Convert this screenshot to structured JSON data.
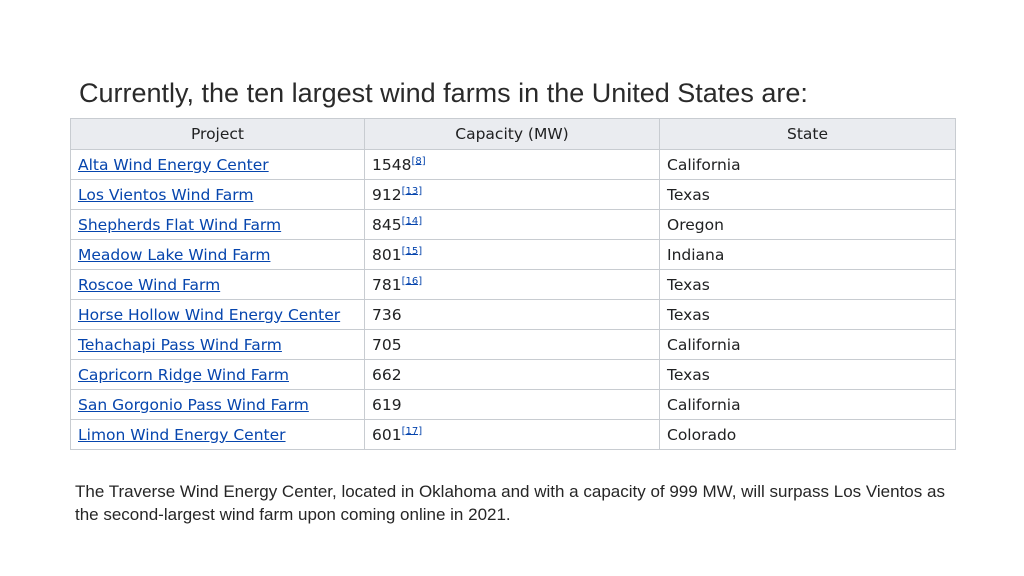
{
  "title": "Currently, the ten largest wind farms in the United States are:",
  "table": {
    "headers": [
      "Project",
      "Capacity (MW)",
      "State"
    ],
    "rows": [
      {
        "project": "Alta Wind Energy Center",
        "capacity": "1548",
        "ref": "[8]",
        "state": "California"
      },
      {
        "project": "Los Vientos Wind Farm",
        "capacity": "912",
        "ref": "[13]",
        "state": "Texas"
      },
      {
        "project": "Shepherds Flat Wind Farm",
        "capacity": "845",
        "ref": "[14]",
        "state": "Oregon"
      },
      {
        "project": "Meadow Lake Wind Farm",
        "capacity": "801",
        "ref": "[15]",
        "state": "Indiana"
      },
      {
        "project": "Roscoe Wind Farm",
        "capacity": "781",
        "ref": "[16]",
        "state": "Texas"
      },
      {
        "project": "Horse Hollow Wind Energy Center",
        "capacity": "736",
        "ref": "",
        "state": "Texas"
      },
      {
        "project": "Tehachapi Pass Wind Farm",
        "capacity": "705",
        "ref": "",
        "state": "California"
      },
      {
        "project": "Capricorn Ridge Wind Farm",
        "capacity": "662",
        "ref": "",
        "state": "Texas"
      },
      {
        "project": "San Gorgonio Pass Wind Farm",
        "capacity": "619",
        "ref": "",
        "state": "California"
      },
      {
        "project": "Limon Wind Energy Center",
        "capacity": "601",
        "ref": "[17]",
        "state": "Colorado"
      }
    ]
  },
  "footnote": "The Traverse Wind Energy Center, located in Oklahoma and with a capacity of 999 MW, will surpass Los Vientos as the second-largest wind farm upon coming online in 2021.",
  "colors": {
    "link": "#0645ad",
    "header_bg": "#eaecf0",
    "border": "#c8ccd1"
  }
}
